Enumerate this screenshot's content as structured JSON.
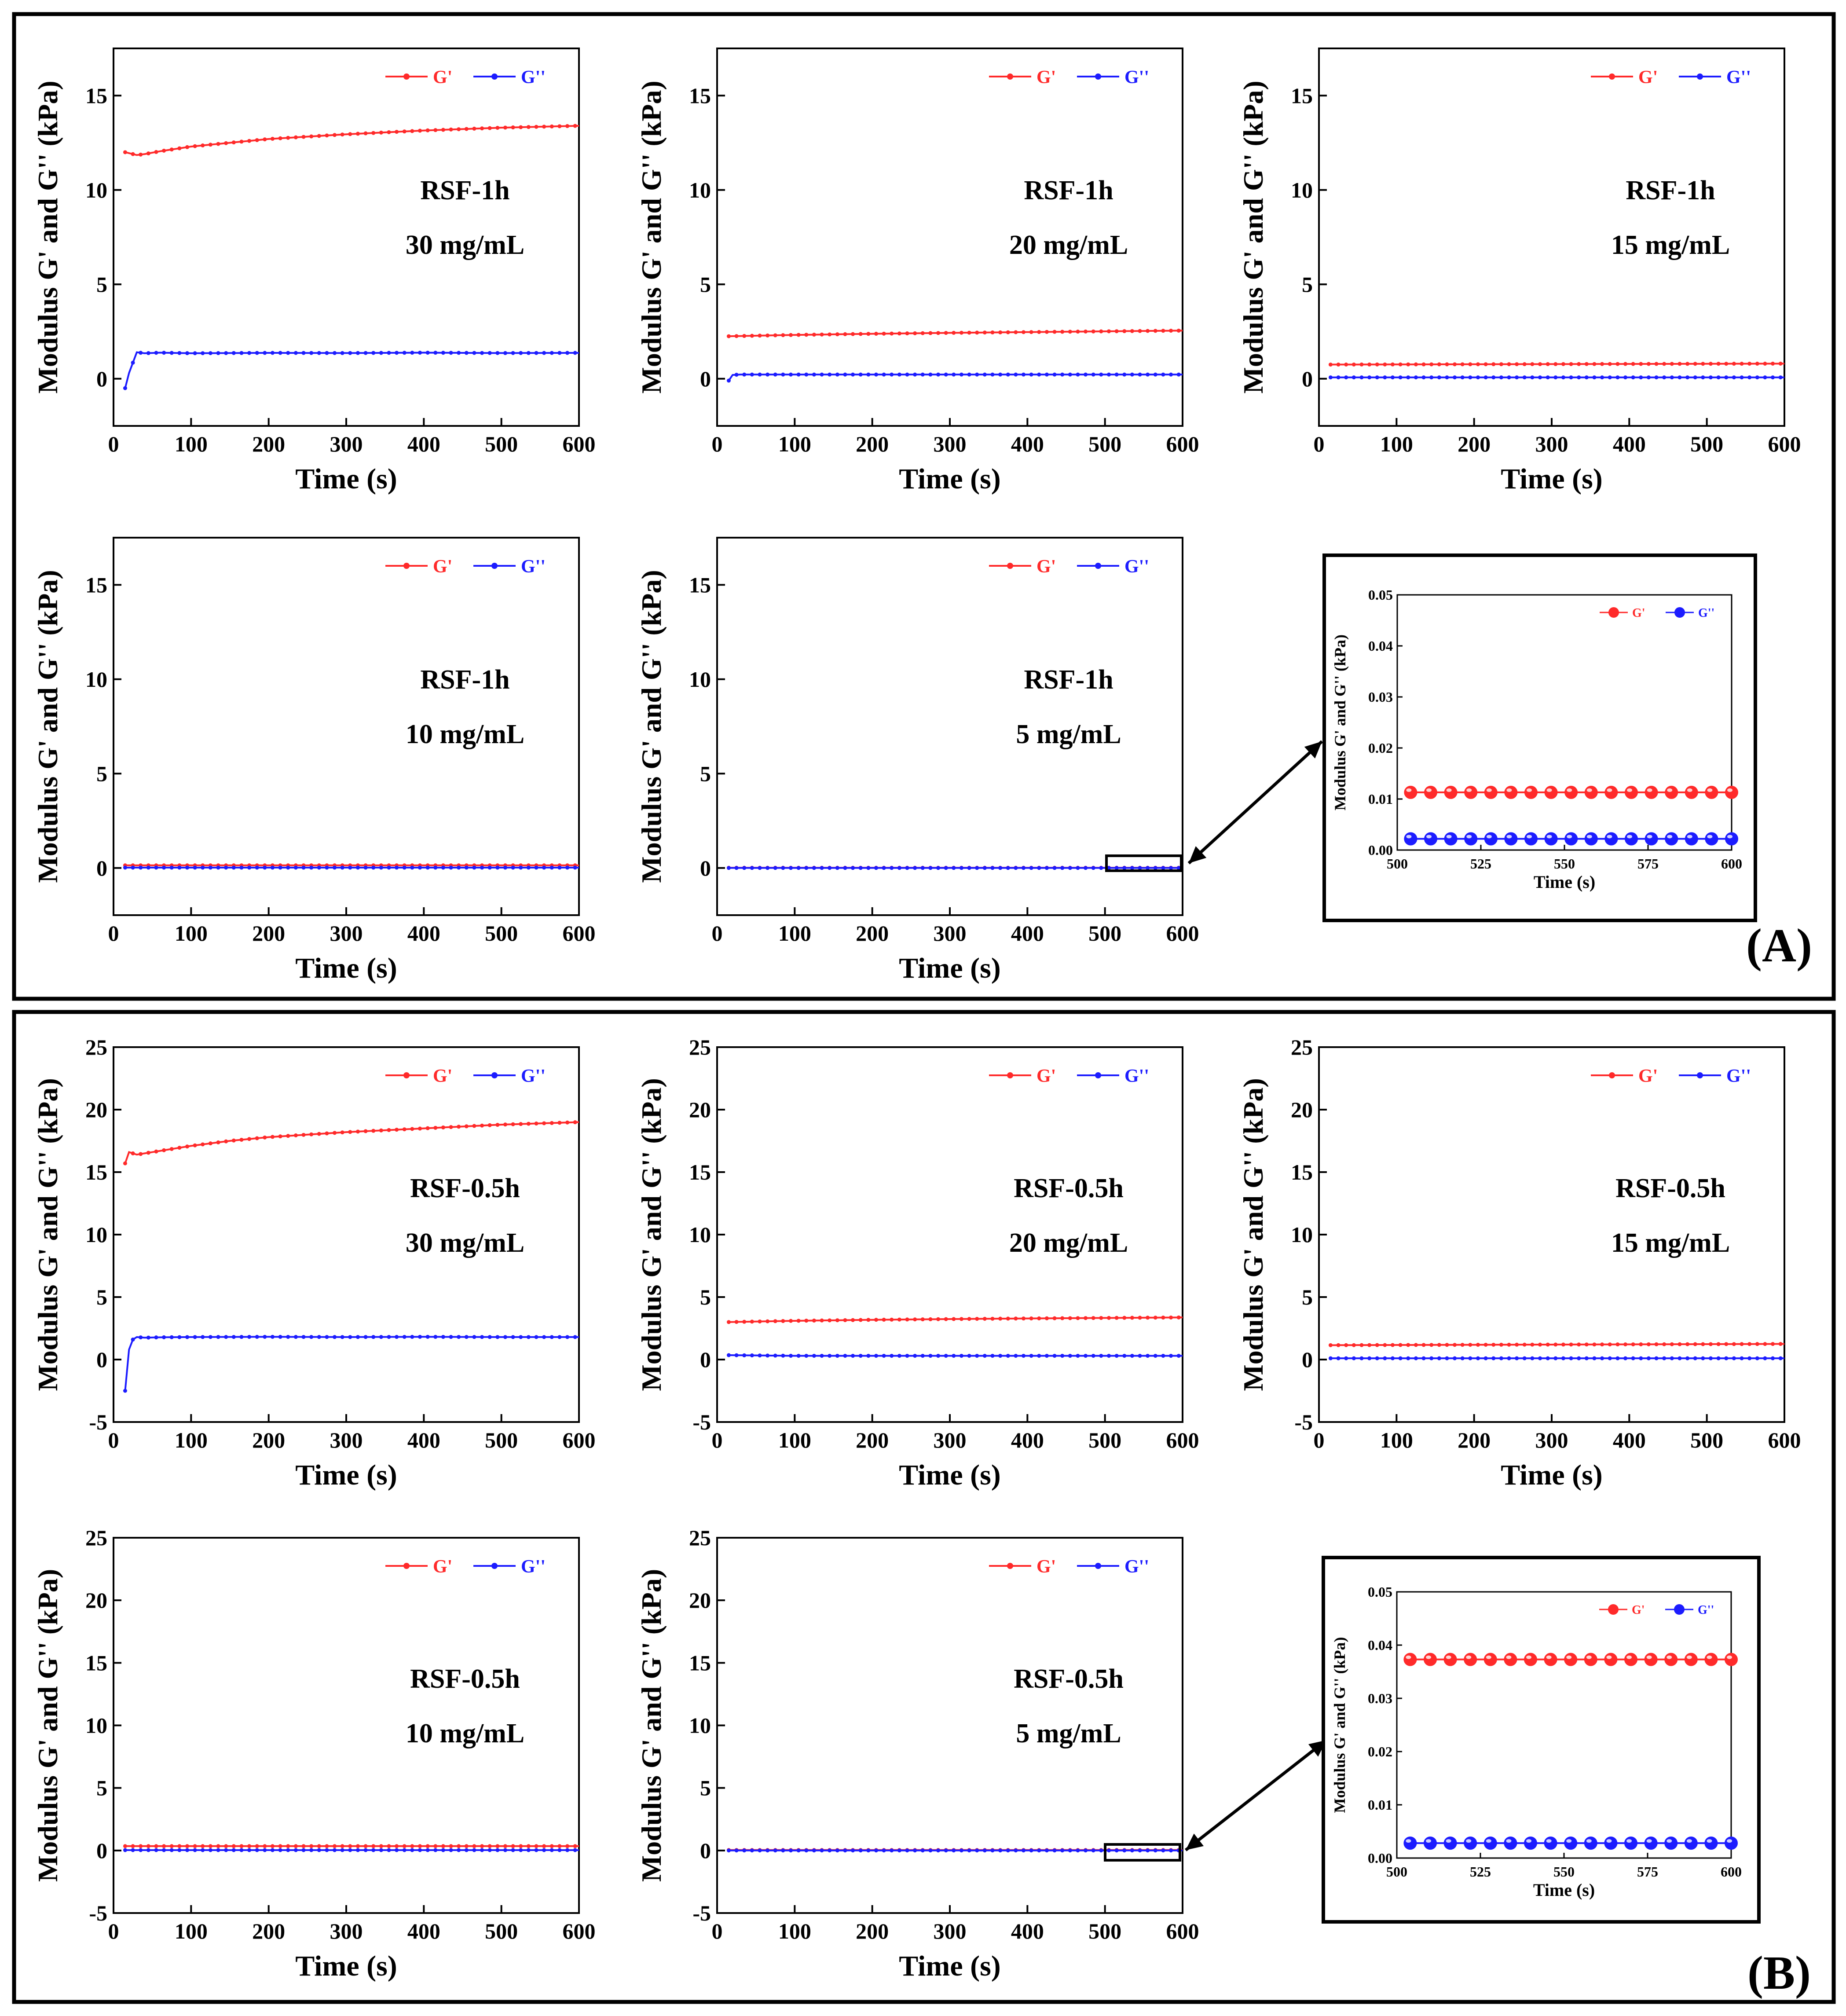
{
  "panels": [
    {
      "label": "(A)",
      "charts": [
        {
          "type": "line",
          "sample": "RSF-1h",
          "concentration": "30 mg/mL",
          "xlabel": "Time (s)",
          "ylabel": "Modulus G' and G'' (kPa)",
          "xlim": [
            0,
            600
          ],
          "ylim": [
            -2.5,
            17.5
          ],
          "yticks": [
            0,
            5,
            10,
            15
          ],
          "xticks": [
            0,
            100,
            200,
            300,
            400,
            500,
            600
          ],
          "legend": [
            "G'",
            "G''"
          ],
          "series": [
            {
              "name": "G'",
              "x": [
                15,
                20,
                30,
                40,
                60,
                100,
                150,
                200,
                300,
                400,
                500,
                600
              ],
              "y": [
                12.0,
                11.95,
                11.85,
                11.9,
                12.05,
                12.3,
                12.5,
                12.7,
                12.95,
                13.15,
                13.3,
                13.4
              ]
            },
            {
              "name": "G''",
              "x": [
                15,
                20,
                30,
                40,
                60,
                100,
                200,
                300,
                400,
                500,
                600
              ],
              "y": [
                -0.5,
                0.3,
                1.4,
                1.35,
                1.38,
                1.35,
                1.37,
                1.36,
                1.38,
                1.36,
                1.37
              ]
            }
          ]
        },
        {
          "type": "line",
          "sample": "RSF-1h",
          "concentration": "20 mg/mL",
          "xlabel": "Time (s)",
          "ylabel": "Modulus G' and G'' (kPa)",
          "xlim": [
            0,
            600
          ],
          "ylim": [
            -2.5,
            17.5
          ],
          "yticks": [
            0,
            5,
            10,
            15
          ],
          "xticks": [
            0,
            100,
            200,
            300,
            400,
            500,
            600
          ],
          "legend": [
            "G'",
            "G''"
          ],
          "series": [
            {
              "name": "G'",
              "x": [
                15,
                100,
                200,
                300,
                400,
                500,
                600
              ],
              "y": [
                2.25,
                2.32,
                2.38,
                2.43,
                2.47,
                2.51,
                2.55
              ]
            },
            {
              "name": "G''",
              "x": [
                15,
                20,
                30,
                100,
                200,
                300,
                400,
                500,
                600
              ],
              "y": [
                -0.1,
                0.2,
                0.22,
                0.22,
                0.22,
                0.22,
                0.22,
                0.22,
                0.22
              ]
            }
          ]
        },
        {
          "type": "line",
          "sample": "RSF-1h",
          "concentration": "15 mg/mL",
          "xlabel": "Time (s)",
          "ylabel": "Modulus G' and G'' (kPa)",
          "xlim": [
            0,
            600
          ],
          "ylim": [
            -2.5,
            17.5
          ],
          "yticks": [
            0,
            5,
            10,
            15
          ],
          "xticks": [
            0,
            100,
            200,
            300,
            400,
            500,
            600
          ],
          "legend": [
            "G'",
            "G''"
          ],
          "series": [
            {
              "name": "G'",
              "x": [
                15,
                600
              ],
              "y": [
                0.75,
                0.8
              ]
            },
            {
              "name": "G''",
              "x": [
                15,
                600
              ],
              "y": [
                0.07,
                0.07
              ]
            }
          ]
        },
        {
          "type": "line",
          "sample": "RSF-1h",
          "concentration": "10 mg/mL",
          "xlabel": "Time (s)",
          "ylabel": "Modulus G' and G'' (kPa)",
          "xlim": [
            0,
            600
          ],
          "ylim": [
            -2.5,
            17.5
          ],
          "yticks": [
            0,
            5,
            10,
            15
          ],
          "xticks": [
            0,
            100,
            200,
            300,
            400,
            500,
            600
          ],
          "legend": [
            "G'",
            "G''"
          ],
          "series": [
            {
              "name": "G'",
              "x": [
                15,
                600
              ],
              "y": [
                0.14,
                0.14
              ]
            },
            {
              "name": "G''",
              "x": [
                15,
                600
              ],
              "y": [
                0.02,
                0.02
              ]
            }
          ]
        },
        {
          "type": "line",
          "sample": "RSF-1h",
          "concentration": "5 mg/mL",
          "xlabel": "Time (s)",
          "ylabel": "Modulus G' and G'' (kPa)",
          "xlim": [
            0,
            600
          ],
          "ylim": [
            -2.5,
            17.5
          ],
          "yticks": [
            0,
            5,
            10,
            15
          ],
          "xticks": [
            0,
            100,
            200,
            300,
            400,
            500,
            600
          ],
          "legend": [
            "G'",
            "G''"
          ],
          "series": [
            {
              "name": "G'",
              "x": [
                15,
                600
              ],
              "y": [
                0.011,
                0.011
              ]
            },
            {
              "name": "G''",
              "x": [
                15,
                600
              ],
              "y": [
                0.002,
                0.002
              ]
            }
          ]
        }
      ],
      "inset": {
        "type": "scatter",
        "xlabel": "Time (s)",
        "ylabel": "Modulus G' and G'' (kPa)",
        "xlim": [
          500,
          600
        ],
        "ylim": [
          0,
          0.05
        ],
        "xticks": [
          500,
          525,
          550,
          575,
          600
        ],
        "yticks": [
          0.0,
          0.01,
          0.02,
          0.03,
          0.04,
          0.05
        ],
        "ytick_labels": [
          "0.00",
          "0.01",
          "0.02",
          "0.03",
          "0.04",
          "0.05"
        ],
        "legend": [
          "G'",
          "G''"
        ],
        "series": [
          {
            "name": "G'",
            "x": [
              504,
              510,
              516,
              522,
              528,
              534,
              540,
              546,
              552,
              558,
              564,
              570,
              576,
              582,
              588,
              594,
              600
            ],
            "y": [
              0.0113,
              0.0113,
              0.0113,
              0.0113,
              0.0113,
              0.0113,
              0.0113,
              0.0113,
              0.0113,
              0.0113,
              0.0113,
              0.0113,
              0.0113,
              0.0113,
              0.0113,
              0.0113,
              0.0113
            ]
          },
          {
            "name": "G''",
            "x": [
              504,
              510,
              516,
              522,
              528,
              534,
              540,
              546,
              552,
              558,
              564,
              570,
              576,
              582,
              588,
              594,
              600
            ],
            "y": [
              0.0022,
              0.0022,
              0.0022,
              0.0022,
              0.0022,
              0.0022,
              0.0022,
              0.0022,
              0.0022,
              0.0022,
              0.0022,
              0.0022,
              0.0022,
              0.0022,
              0.0022,
              0.0022,
              0.0022
            ]
          }
        ]
      }
    },
    {
      "label": "(B)",
      "charts": [
        {
          "type": "line",
          "sample": "RSF-0.5h",
          "concentration": "30 mg/mL",
          "xlabel": "Time (s)",
          "ylabel": "Modulus G' and G'' (kPa)",
          "xlim": [
            0,
            600
          ],
          "ylim": [
            -5,
            25
          ],
          "yticks": [
            -5,
            0,
            5,
            10,
            15,
            20,
            25
          ],
          "xticks": [
            0,
            100,
            200,
            300,
            400,
            500,
            600
          ],
          "legend": [
            "G'",
            "G''"
          ],
          "series": [
            {
              "name": "G'",
              "x": [
                15,
                20,
                25,
                30,
                40,
                60,
                100,
                150,
                200,
                300,
                400,
                500,
                600
              ],
              "y": [
                15.7,
                16.6,
                16.5,
                16.4,
                16.5,
                16.7,
                17.1,
                17.5,
                17.8,
                18.2,
                18.5,
                18.8,
                19.0
              ]
            },
            {
              "name": "G''",
              "x": [
                15,
                20,
                25,
                30,
                40,
                60,
                100,
                200,
                300,
                400,
                500,
                600
              ],
              "y": [
                -2.5,
                0.8,
                1.6,
                1.8,
                1.75,
                1.78,
                1.8,
                1.82,
                1.8,
                1.82,
                1.8,
                1.8
              ]
            }
          ]
        },
        {
          "type": "line",
          "sample": "RSF-0.5h",
          "concentration": "20 mg/mL",
          "xlabel": "Time (s)",
          "ylabel": "Modulus G' and G'' (kPa)",
          "xlim": [
            0,
            600
          ],
          "ylim": [
            -5,
            25
          ],
          "yticks": [
            -5,
            0,
            5,
            10,
            15,
            20,
            25
          ],
          "xticks": [
            0,
            100,
            200,
            300,
            400,
            500,
            600
          ],
          "legend": [
            "G'",
            "G''"
          ],
          "series": [
            {
              "name": "G'",
              "x": [
                15,
                100,
                200,
                300,
                400,
                500,
                600
              ],
              "y": [
                3.0,
                3.1,
                3.18,
                3.24,
                3.29,
                3.33,
                3.37
              ]
            },
            {
              "name": "G''",
              "x": [
                15,
                100,
                200,
                300,
                400,
                500,
                600
              ],
              "y": [
                0.35,
                0.3,
                0.3,
                0.3,
                0.3,
                0.3,
                0.3
              ]
            }
          ]
        },
        {
          "type": "line",
          "sample": "RSF-0.5h",
          "concentration": "15 mg/mL",
          "xlabel": "Time (s)",
          "ylabel": "Modulus G' and G'' (kPa)",
          "xlim": [
            0,
            600
          ],
          "ylim": [
            -5,
            25
          ],
          "yticks": [
            -5,
            0,
            5,
            10,
            15,
            20,
            25
          ],
          "xticks": [
            0,
            100,
            200,
            300,
            400,
            500,
            600
          ],
          "legend": [
            "G'",
            "G''"
          ],
          "series": [
            {
              "name": "G'",
              "x": [
                15,
                600
              ],
              "y": [
                1.15,
                1.25
              ]
            },
            {
              "name": "G''",
              "x": [
                15,
                600
              ],
              "y": [
                0.1,
                0.1
              ]
            }
          ]
        },
        {
          "type": "line",
          "sample": "RSF-0.5h",
          "concentration": "10 mg/mL",
          "xlabel": "Time (s)",
          "ylabel": "Modulus G' and G'' (kPa)",
          "xlim": [
            0,
            600
          ],
          "ylim": [
            -5,
            25
          ],
          "yticks": [
            -5,
            0,
            5,
            10,
            15,
            20,
            25
          ],
          "xticks": [
            0,
            100,
            200,
            300,
            400,
            500,
            600
          ],
          "legend": [
            "G'",
            "G''"
          ],
          "series": [
            {
              "name": "G'",
              "x": [
                15,
                600
              ],
              "y": [
                0.35,
                0.35
              ]
            },
            {
              "name": "G''",
              "x": [
                15,
                600
              ],
              "y": [
                0.03,
                0.03
              ]
            }
          ]
        },
        {
          "type": "line",
          "sample": "RSF-0.5h",
          "concentration": "5 mg/mL",
          "xlabel": "Time (s)",
          "ylabel": "Modulus G' and G'' (kPa)",
          "xlim": [
            0,
            600
          ],
          "ylim": [
            -5,
            25
          ],
          "yticks": [
            -5,
            0,
            5,
            10,
            15,
            20,
            25
          ],
          "xticks": [
            0,
            100,
            200,
            300,
            400,
            500,
            600
          ],
          "legend": [
            "G'",
            "G''"
          ],
          "series": [
            {
              "name": "G'",
              "x": [
                15,
                600
              ],
              "y": [
                0.037,
                0.037
              ]
            },
            {
              "name": "G''",
              "x": [
                15,
                600
              ],
              "y": [
                0.003,
                0.003
              ]
            }
          ]
        }
      ],
      "inset": {
        "type": "scatter",
        "xlabel": "Time (s)",
        "ylabel": "Modulus G' and G'' (kPa)",
        "xlim": [
          500,
          600
        ],
        "ylim": [
          0,
          0.05
        ],
        "xticks": [
          500,
          525,
          550,
          575,
          600
        ],
        "yticks": [
          0.0,
          0.01,
          0.02,
          0.03,
          0.04,
          0.05
        ],
        "ytick_labels": [
          "0.00",
          "0.01",
          "0.02",
          "0.03",
          "0.04",
          "0.05"
        ],
        "legend": [
          "G'",
          "G''"
        ],
        "series": [
          {
            "name": "G'",
            "x": [
              504,
              510,
              516,
              522,
              528,
              534,
              540,
              546,
              552,
              558,
              564,
              570,
              576,
              582,
              588,
              594,
              600
            ],
            "y": [
              0.0373,
              0.0373,
              0.0373,
              0.0373,
              0.0373,
              0.0373,
              0.0373,
              0.0373,
              0.0373,
              0.0373,
              0.0373,
              0.0373,
              0.0373,
              0.0373,
              0.0373,
              0.0373,
              0.0373
            ]
          },
          {
            "name": "G''",
            "x": [
              504,
              510,
              516,
              522,
              528,
              534,
              540,
              546,
              552,
              558,
              564,
              570,
              576,
              582,
              588,
              594,
              600
            ],
            "y": [
              0.0028,
              0.0028,
              0.0028,
              0.0028,
              0.0028,
              0.0028,
              0.0028,
              0.0028,
              0.0028,
              0.0028,
              0.0028,
              0.0028,
              0.0028,
              0.0028,
              0.0028,
              0.0028,
              0.0028
            ]
          }
        ]
      }
    }
  ],
  "colors": {
    "g_prime": "#ff2a2a",
    "g_double_prime": "#1c1cff",
    "frame": "#000000"
  }
}
